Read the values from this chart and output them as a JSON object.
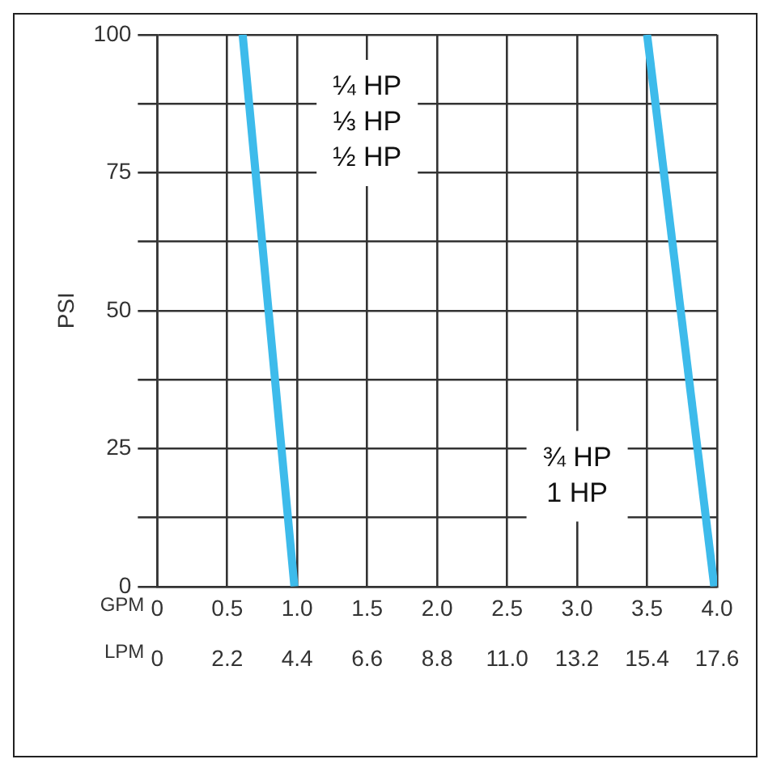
{
  "chart_data": {
    "type": "line",
    "xlabel": "GPM",
    "x2label": "LPM",
    "ylabel": "PSI",
    "series": [
      {
        "color": "#3dbbeb",
        "x": [
          0.61,
          0.98
        ],
        "values": [
          100,
          0
        ]
      },
      {
        "color": "#3dbbeb",
        "x": [
          3.5,
          3.98
        ],
        "values": [
          100,
          0
        ]
      }
    ],
    "xlim": [
      0,
      4
    ],
    "xticks": [
      {
        "value": 0,
        "label": "0"
      },
      {
        "value": 0.5,
        "label": "0.5"
      },
      {
        "value": 1,
        "label": "1.0"
      },
      {
        "value": 1.5,
        "label": "1.5"
      },
      {
        "value": 2,
        "label": "2.0"
      },
      {
        "value": 2.5,
        "label": "2.5"
      },
      {
        "value": 3,
        "label": "3.0"
      },
      {
        "value": 3.5,
        "label": "3.5"
      },
      {
        "value": 4,
        "label": "4.0"
      }
    ],
    "x2lim": [
      0,
      17.6
    ],
    "x2ticks": [
      0,
      2.2,
      4.4,
      6.6,
      8.8,
      {
        "value": 11,
        "label": "11.0"
      },
      13.2,
      15.4,
      17.6
    ],
    "ylim": [
      0,
      100
    ],
    "yticks": [
      0,
      {
        "value": 12.5,
        "label": null
      },
      25,
      {
        "value": 37.5,
        "label": null
      },
      50,
      {
        "value": 62.5,
        "label": null
      },
      75,
      {
        "value": 87.5,
        "label": null
      },
      100
    ],
    "annotations": [
      "¼ HP\n⅓ HP\n½ HP",
      "¾ HP\n1 HP"
    ],
    "grid": true,
    "legend": false,
    "marker": "none",
    "line_style": "solid"
  }
}
